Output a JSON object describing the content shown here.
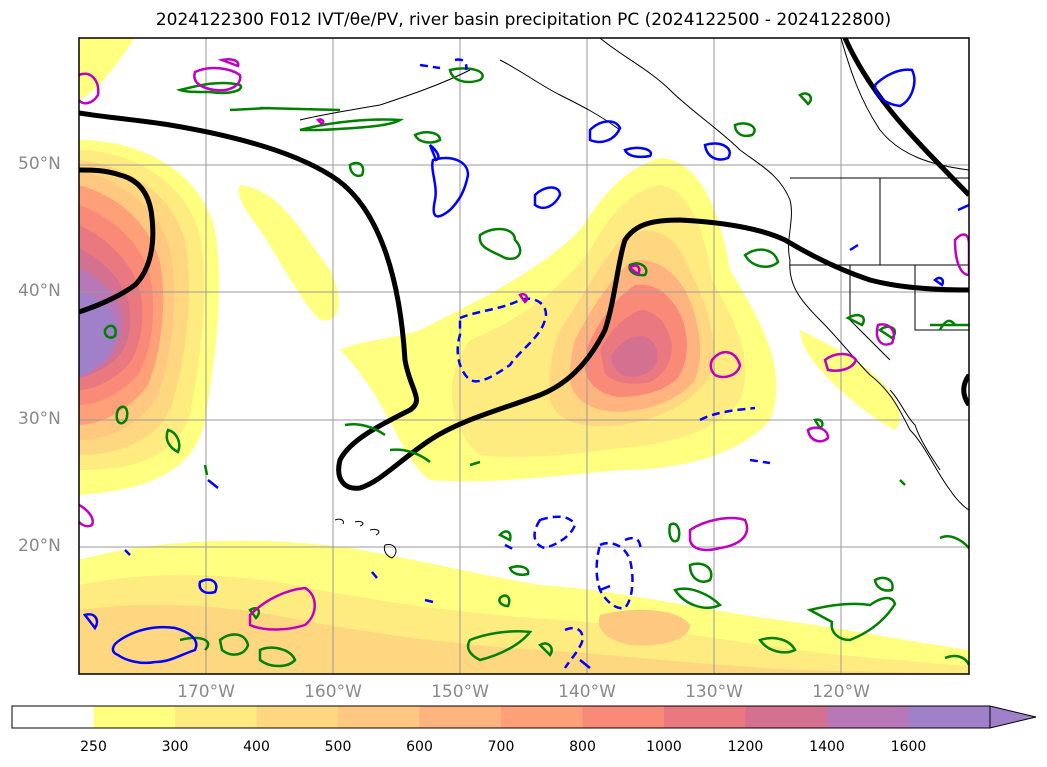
{
  "title": "2024122300 F012 IVT/θe/PV, river basin precipitation PC (2024122500 - 2024122800)",
  "lat_labels": [
    "50°N",
    "40°N",
    "30°N",
    "20°N"
  ],
  "lon_labels": [
    "170°W",
    "160°W",
    "150°W",
    "140°W",
    "130°W",
    "120°W"
  ],
  "colorbar": {
    "levels": [
      "250",
      "300",
      "400",
      "500",
      "600",
      "700",
      "800",
      "1000",
      "1200",
      "1400",
      "1600"
    ],
    "colors": [
      "#ffffff",
      "#ffff80",
      "#ffec80",
      "#ffd780",
      "#ffc880",
      "#ffb480",
      "#ffa078",
      "#fa8a78",
      "#ea7880",
      "#d47090",
      "#b878b8",
      "#a080c8"
    ],
    "extend": "max"
  },
  "contour_colors": {
    "theta_e_line": "#000000",
    "pv_green": "#008000",
    "pv_blue": "#0000ff",
    "pv_magenta": "#c000c0"
  }
}
